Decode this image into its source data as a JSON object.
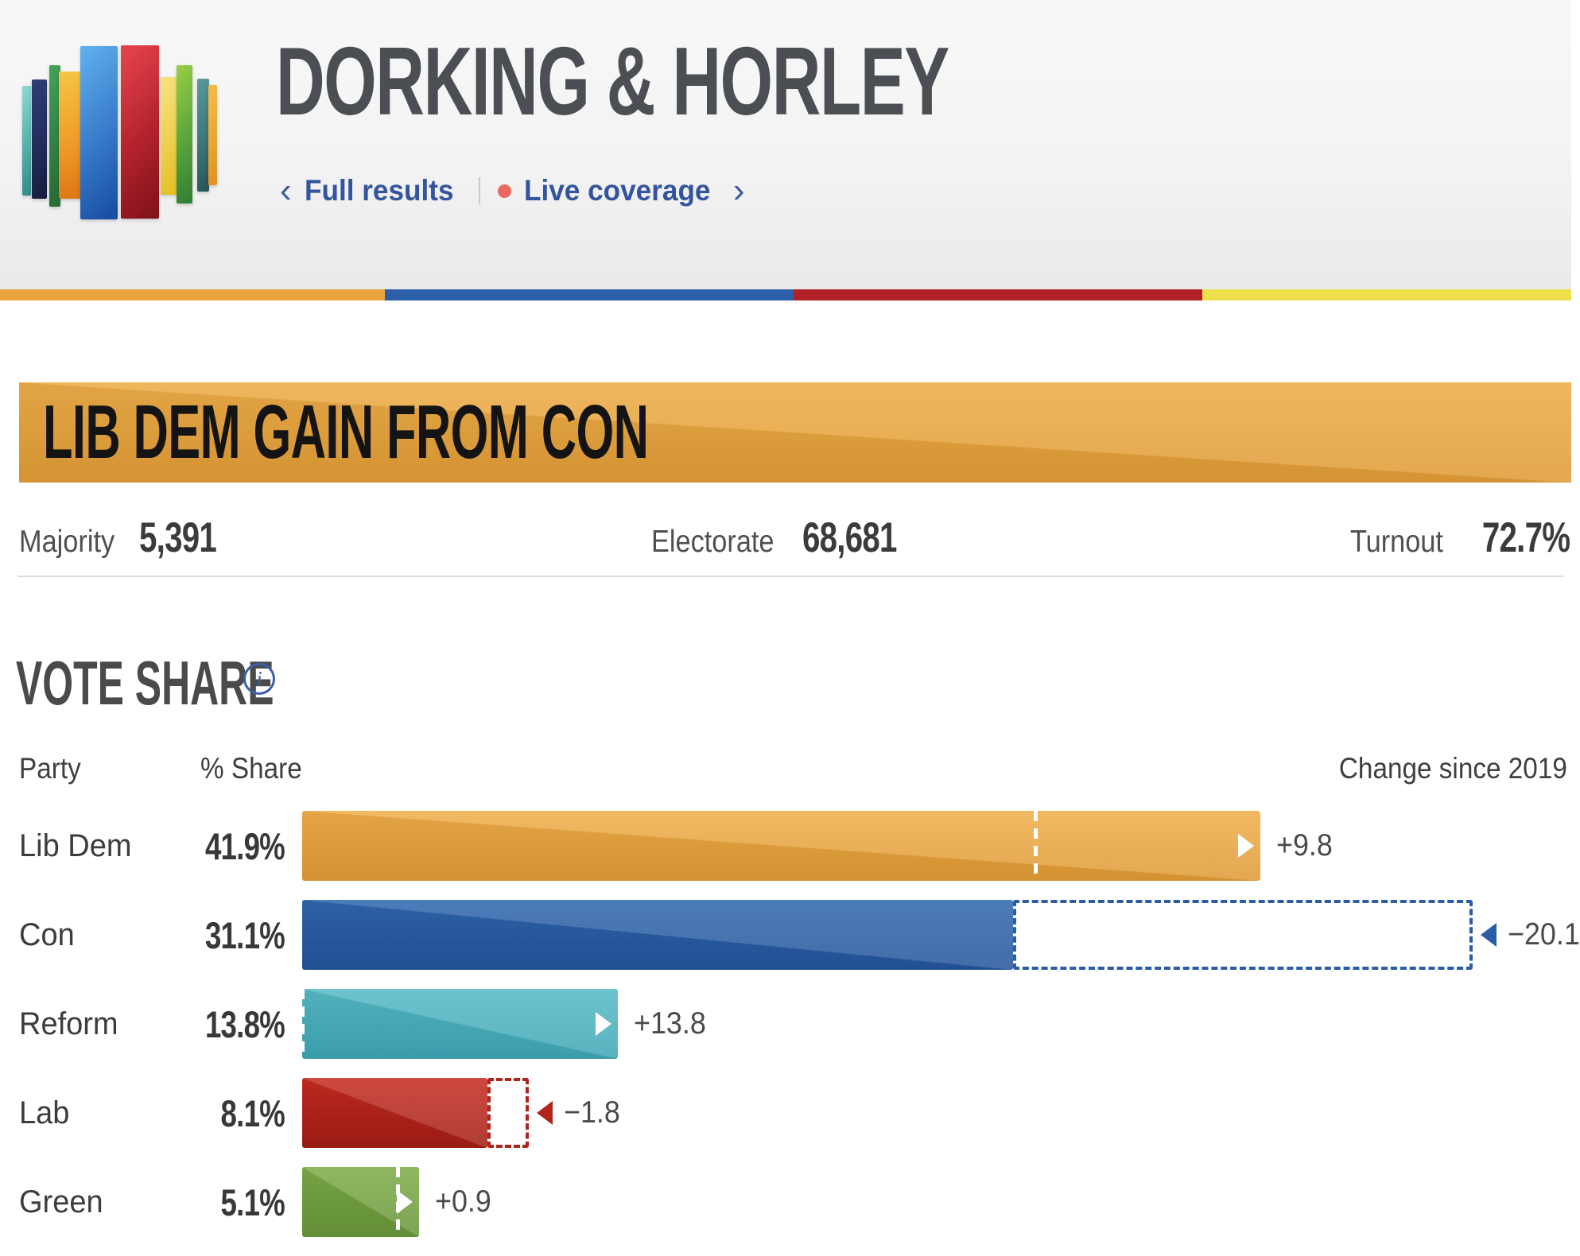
{
  "header": {
    "title": "DORKING & HORLEY",
    "logo_icon": "election-bars-logo",
    "nav": {
      "back_chevron": "‹",
      "full_results_label": "Full results",
      "live_coverage_label": "Live coverage",
      "forward_chevron": "›"
    }
  },
  "party_strip_colors": [
    "#e8a33d",
    "#2c5ea9",
    "#b22025",
    "#efe14c"
  ],
  "result_banner": {
    "label": "LIB DEM GAIN FROM CON"
  },
  "stats": [
    {
      "label": "Majority",
      "value": "5,391"
    },
    {
      "label": "Electorate",
      "value": "68,681"
    },
    {
      "label": "Turnout",
      "value": "72.7%"
    }
  ],
  "vote_share": {
    "heading": "VOTE SHARE",
    "info_icon": "i",
    "columns": {
      "party": "Party",
      "share": "% Share",
      "change": "Change since 2019"
    }
  },
  "chart_data": {
    "type": "bar",
    "orientation": "horizontal",
    "title": "VOTE SHARE",
    "categories": [
      "Lib Dem",
      "Con",
      "Reform",
      "Lab",
      "Green"
    ],
    "series": [
      {
        "name": "% Share",
        "values": [
          41.9,
          31.1,
          13.8,
          8.1,
          5.1
        ]
      },
      {
        "name": "Change since 2019",
        "values": [
          9.8,
          -20.1,
          13.8,
          -1.8,
          0.9
        ]
      }
    ],
    "share_labels": [
      "41.9%",
      "31.1%",
      "13.8%",
      "8.1%",
      "5.1%"
    ],
    "change_labels": [
      "+9.8",
      "−20.1",
      "+13.8",
      "−1.8",
      "+0.9"
    ],
    "previous_share": [
      32.1,
      51.2,
      0,
      9.9,
      4.2
    ],
    "bar_colors": [
      {
        "top": "#f0ad49",
        "bottom": "#de9933"
      },
      {
        "top": "#2f66ae",
        "bottom": "#24549b"
      },
      {
        "top": "#55bac6",
        "bottom": "#3ea5b4"
      },
      {
        "top": "#c62b20",
        "bottom": "#a21d15"
      },
      {
        "top": "#7cab46",
        "bottom": "#679539"
      }
    ],
    "outline_colors": [
      null,
      "#2b5ca7",
      null,
      "#b0241c",
      null
    ],
    "xlim": [
      0,
      55.5
    ],
    "legend_position": "none",
    "grid": false
  }
}
